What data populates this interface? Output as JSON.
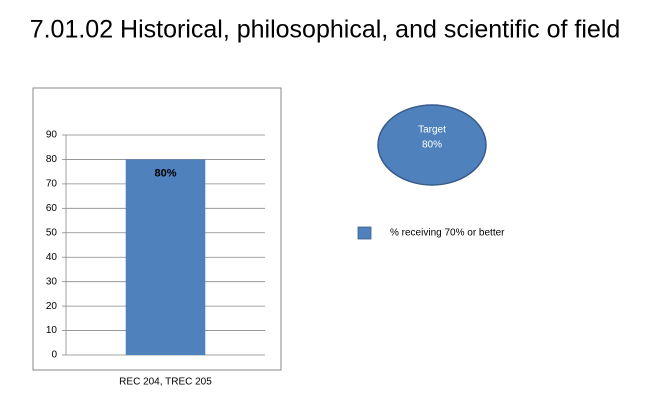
{
  "chart_data": {
    "type": "bar",
    "title": "7.01.02 Historical, philosophical, and scientific of field",
    "categories": [
      "REC 204, TREC 205"
    ],
    "series": [
      {
        "name": "% receiving 70% or better",
        "color": "#4f81bd",
        "values": [
          80
        ],
        "value_labels": [
          "80%"
        ]
      }
    ],
    "ylim": [
      0,
      90
    ],
    "yticks": [
      0,
      10,
      20,
      30,
      40,
      50,
      60,
      70,
      80,
      90
    ],
    "grid": true,
    "target": {
      "name": "Target",
      "label": "80%",
      "color": "#4f81bd"
    }
  }
}
